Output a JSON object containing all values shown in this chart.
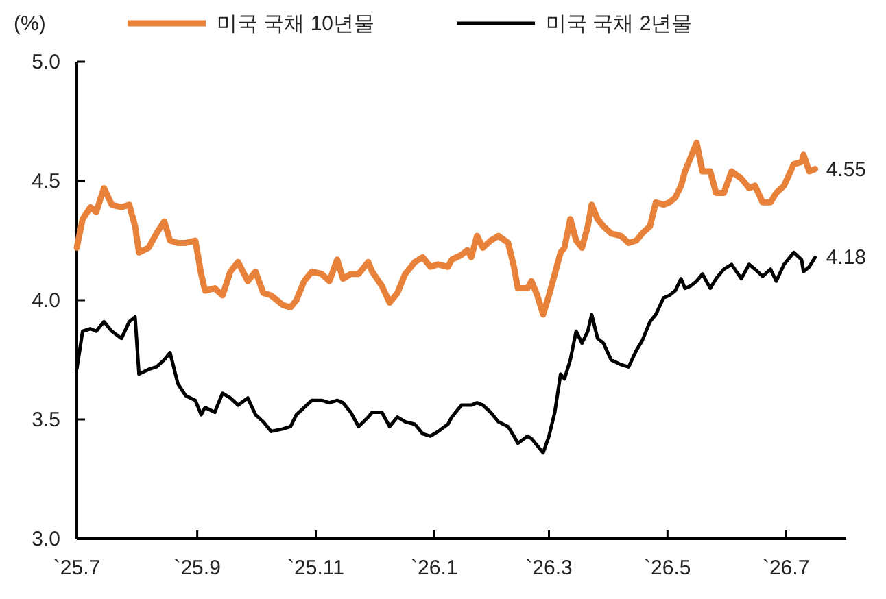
{
  "chart_data": {
    "type": "line",
    "ylabel": "(%)",
    "legend": "top",
    "grid": false,
    "ylim": [
      3,
      5
    ],
    "yticks": [
      {
        "value": 3,
        "label": "3.0"
      },
      {
        "value": 3.5,
        "label": "3.5"
      },
      {
        "value": 4,
        "label": "4.0"
      },
      {
        "value": 4.5,
        "label": "4.5"
      },
      {
        "value": 5,
        "label": "5.0"
      }
    ],
    "xlim": [
      "2025-07-01",
      "2026-08-01"
    ],
    "xticks": [
      {
        "value": "2025-07-01",
        "label": "`25.7"
      },
      {
        "value": "2025-09-01",
        "label": "`25.9"
      },
      {
        "value": "2025-11-01",
        "label": "`25.11"
      },
      {
        "value": "2026-01-01",
        "label": "`26.1"
      },
      {
        "value": "2026-03-01",
        "label": "`26.3"
      },
      {
        "value": "2026-05-01",
        "label": "`26.5"
      },
      {
        "value": "2026-07-01",
        "label": "`26.7"
      }
    ],
    "x": [
      "2025-07-01",
      "2025-07-04",
      "2025-07-08",
      "2025-07-11",
      "2025-07-15",
      "2025-07-19",
      "2025-07-24",
      "2025-07-28",
      "2025-07-31",
      "2025-08-02",
      "2025-08-07",
      "2025-08-11",
      "2025-08-15",
      "2025-08-18",
      "2025-08-22",
      "2025-08-26",
      "2025-08-31",
      "2025-09-03",
      "2025-09-05",
      "2025-09-10",
      "2025-09-14",
      "2025-09-18",
      "2025-09-22",
      "2025-09-27",
      "2025-10-01",
      "2025-10-05",
      "2025-10-09",
      "2025-10-15",
      "2025-10-19",
      "2025-10-22",
      "2025-10-26",
      "2025-10-30",
      "2025-11-04",
      "2025-11-08",
      "2025-11-12",
      "2025-11-15",
      "2025-11-19",
      "2025-11-23",
      "2025-11-28",
      "2025-11-30",
      "2025-12-05",
      "2025-12-09",
      "2025-12-13",
      "2025-12-17",
      "2025-12-22",
      "2025-12-26",
      "2025-12-30",
      "2026-01-03",
      "2026-01-08",
      "2026-01-10",
      "2026-01-15",
      "2026-01-18",
      "2026-01-20",
      "2026-01-23",
      "2026-01-26",
      "2026-01-30",
      "2026-02-03",
      "2026-02-08",
      "2026-02-11",
      "2026-02-13",
      "2026-02-18",
      "2026-02-20",
      "2026-02-23",
      "2026-02-26",
      "2026-03-01",
      "2026-03-04",
      "2026-03-07",
      "2026-03-09",
      "2026-03-12",
      "2026-03-15",
      "2026-03-18",
      "2026-03-21",
      "2026-03-23",
      "2026-03-26",
      "2026-03-29",
      "2026-04-02",
      "2026-04-07",
      "2026-04-11",
      "2026-04-15",
      "2026-04-18",
      "2026-04-22",
      "2026-04-25",
      "2026-04-29",
      "2026-05-02",
      "2026-05-05",
      "2026-05-08",
      "2026-05-10",
      "2026-05-13",
      "2026-05-16",
      "2026-05-19",
      "2026-05-23",
      "2026-05-26",
      "2026-05-30",
      "2026-06-03",
      "2026-06-08",
      "2026-06-12",
      "2026-06-15",
      "2026-06-19",
      "2026-06-23",
      "2026-06-26",
      "2026-06-30",
      "2026-07-05",
      "2026-07-09",
      "2026-07-10",
      "2026-07-13",
      "2026-07-16"
    ],
    "series": [
      {
        "name": "미국 국채 10년물",
        "color": "#e8823a",
        "values": [
          4.22,
          4.34,
          4.39,
          4.37,
          4.47,
          4.4,
          4.39,
          4.4,
          4.31,
          4.2,
          4.22,
          4.28,
          4.33,
          4.25,
          4.24,
          4.24,
          4.25,
          4.11,
          4.04,
          4.05,
          4.02,
          4.12,
          4.16,
          4.08,
          4.12,
          4.03,
          4.02,
          3.98,
          3.97,
          4.0,
          4.08,
          4.12,
          4.11,
          4.08,
          4.17,
          4.09,
          4.11,
          4.11,
          4.16,
          4.12,
          4.06,
          3.99,
          4.03,
          4.11,
          4.16,
          4.18,
          4.14,
          4.15,
          4.14,
          4.17,
          4.19,
          4.21,
          4.18,
          4.27,
          4.22,
          4.25,
          4.27,
          4.24,
          4.14,
          4.05,
          4.05,
          4.08,
          4.02,
          3.94,
          4.02,
          4.11,
          4.2,
          4.22,
          4.34,
          4.25,
          4.22,
          4.31,
          4.4,
          4.34,
          4.31,
          4.28,
          4.27,
          4.24,
          4.25,
          4.28,
          4.31,
          4.41,
          4.4,
          4.41,
          4.43,
          4.48,
          4.54,
          4.6,
          4.66,
          4.54,
          4.54,
          4.45,
          4.45,
          4.54,
          4.51,
          4.47,
          4.48,
          4.41,
          4.41,
          4.45,
          4.48,
          4.57,
          4.58,
          4.61,
          4.54,
          4.55
        ],
        "value_labels": [
          null,
          null,
          null,
          null,
          null,
          null,
          null,
          null,
          null,
          null,
          null,
          null,
          null,
          null,
          null,
          null,
          null,
          null,
          null,
          null,
          null,
          null,
          null,
          null,
          null,
          null,
          null,
          null,
          null,
          null,
          null,
          null,
          null,
          null,
          null,
          null,
          null,
          null,
          null,
          null,
          null,
          null,
          null,
          null,
          null,
          null,
          null,
          null,
          null,
          null,
          null,
          null,
          null,
          null,
          null,
          null,
          null,
          null,
          null,
          null,
          null,
          null,
          null,
          null,
          null,
          null,
          null,
          null,
          null,
          null,
          null,
          null,
          null,
          null,
          null,
          null,
          null,
          null,
          null,
          null,
          null,
          null,
          null,
          null,
          null,
          null,
          null,
          null,
          null,
          null,
          null,
          null,
          null,
          null,
          null,
          null,
          null,
          null,
          null,
          null,
          null,
          null,
          null,
          null,
          null,
          "4.55"
        ]
      },
      {
        "name": "미국 국채 2년물",
        "color": "#000000",
        "values": [
          3.71,
          3.87,
          3.88,
          3.87,
          3.91,
          3.87,
          3.84,
          3.91,
          3.93,
          3.69,
          3.71,
          3.72,
          3.75,
          3.78,
          3.65,
          3.6,
          3.58,
          3.52,
          3.55,
          3.53,
          3.61,
          3.59,
          3.56,
          3.59,
          3.52,
          3.49,
          3.45,
          3.46,
          3.47,
          3.52,
          3.55,
          3.58,
          3.58,
          3.57,
          3.58,
          3.57,
          3.53,
          3.47,
          3.51,
          3.53,
          3.53,
          3.47,
          3.51,
          3.49,
          3.48,
          3.44,
          3.43,
          3.45,
          3.48,
          3.51,
          3.56,
          3.56,
          3.56,
          3.57,
          3.56,
          3.53,
          3.49,
          3.47,
          3.43,
          3.4,
          3.43,
          3.42,
          3.39,
          3.36,
          3.43,
          3.53,
          3.69,
          3.67,
          3.75,
          3.87,
          3.82,
          3.87,
          3.94,
          3.84,
          3.82,
          3.75,
          3.73,
          3.72,
          3.79,
          3.83,
          3.91,
          3.94,
          4.01,
          4.02,
          4.04,
          4.09,
          4.05,
          4.06,
          4.08,
          4.11,
          4.05,
          4.09,
          4.13,
          4.15,
          4.09,
          4.15,
          4.13,
          4.1,
          4.13,
          4.08,
          4.15,
          4.2,
          4.17,
          4.12,
          4.14,
          4.18
        ],
        "value_labels": [
          null,
          null,
          null,
          null,
          null,
          null,
          null,
          null,
          null,
          null,
          null,
          null,
          null,
          null,
          null,
          null,
          null,
          null,
          null,
          null,
          null,
          null,
          null,
          null,
          null,
          null,
          null,
          null,
          null,
          null,
          null,
          null,
          null,
          null,
          null,
          null,
          null,
          null,
          null,
          null,
          null,
          null,
          null,
          null,
          null,
          null,
          null,
          null,
          null,
          null,
          null,
          null,
          null,
          null,
          null,
          null,
          null,
          null,
          null,
          null,
          null,
          null,
          null,
          null,
          null,
          null,
          null,
          null,
          null,
          null,
          null,
          null,
          null,
          null,
          null,
          null,
          null,
          null,
          null,
          null,
          null,
          null,
          null,
          null,
          null,
          null,
          null,
          null,
          null,
          null,
          null,
          null,
          null,
          null,
          null,
          null,
          null,
          null,
          null,
          null,
          null,
          null,
          null,
          null,
          null,
          "4.18"
        ]
      }
    ]
  }
}
